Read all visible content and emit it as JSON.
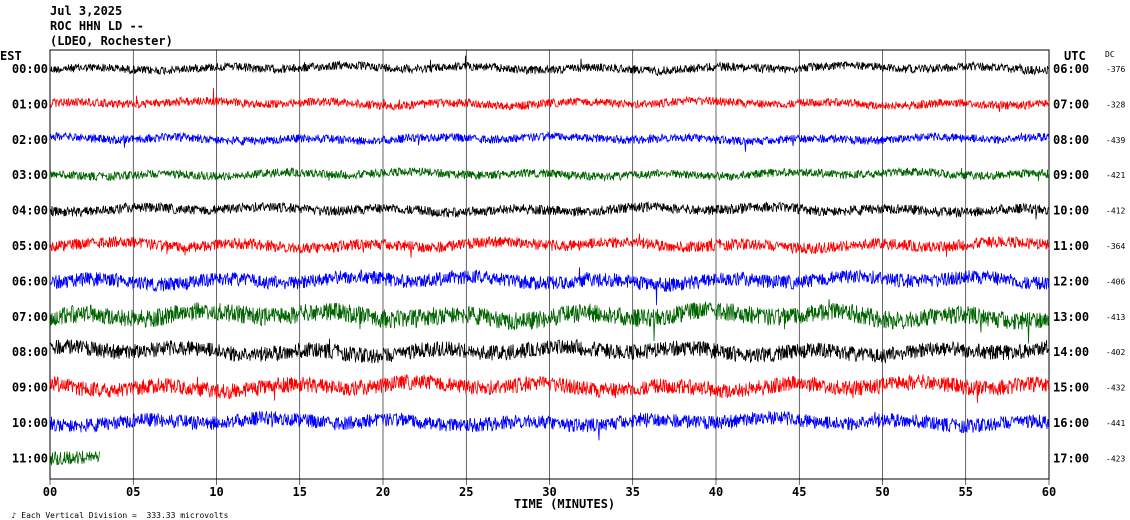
{
  "header": {
    "date": "Jul 3,2025",
    "station": "ROC HHN LD --",
    "network": "(LDEO, Rochester)"
  },
  "left_zone": "EST",
  "right_zone": "UTC",
  "dc_label": "DC",
  "footer": {
    "scale": "Each Vertical Division =  333.33 microvolts",
    "xlabel": "TIME (MINUTES)"
  },
  "colors": {
    "black": "#000000",
    "red": "#ff0000",
    "blue": "#0000ff",
    "green": "#006400"
  },
  "chart_data": {
    "type": "line",
    "title": "Jul 3,2025 ROC HHN LD -- (LDEO, Rochester)",
    "xlabel": "TIME (MINUTES)",
    "xlim": [
      0,
      60
    ],
    "x_ticks": [
      "00",
      "05",
      "10",
      "15",
      "20",
      "25",
      "30",
      "35",
      "40",
      "45",
      "50",
      "55",
      "60"
    ],
    "grid": "vertical lines every 5 minutes",
    "series": [
      {
        "est": "00:00",
        "utc": "06:00",
        "dc": "-376",
        "color": "#000000",
        "amplitude": 0.6,
        "end_minute": 60
      },
      {
        "est": "01:00",
        "utc": "07:00",
        "dc": "-328",
        "color": "#ff0000",
        "amplitude": 0.6,
        "end_minute": 60
      },
      {
        "est": "02:00",
        "utc": "08:00",
        "dc": "-439",
        "color": "#0000ff",
        "amplitude": 0.6,
        "end_minute": 60
      },
      {
        "est": "03:00",
        "utc": "09:00",
        "dc": "-421",
        "color": "#006400",
        "amplitude": 0.6,
        "end_minute": 60
      },
      {
        "est": "04:00",
        "utc": "10:00",
        "dc": "-412",
        "color": "#000000",
        "amplitude": 0.7,
        "end_minute": 60
      },
      {
        "est": "05:00",
        "utc": "11:00",
        "dc": "-364",
        "color": "#ff0000",
        "amplitude": 0.8,
        "end_minute": 60
      },
      {
        "est": "06:00",
        "utc": "12:00",
        "dc": "-406",
        "color": "#0000ff",
        "amplitude": 1.0,
        "end_minute": 60
      },
      {
        "est": "07:00",
        "utc": "13:00",
        "dc": "-413",
        "color": "#006400",
        "amplitude": 1.3,
        "end_minute": 60
      },
      {
        "est": "08:00",
        "utc": "14:00",
        "dc": "-402",
        "color": "#000000",
        "amplitude": 1.1,
        "end_minute": 60
      },
      {
        "est": "09:00",
        "utc": "15:00",
        "dc": "-432",
        "color": "#ff0000",
        "amplitude": 1.1,
        "end_minute": 60
      },
      {
        "est": "10:00",
        "utc": "16:00",
        "dc": "-441",
        "color": "#0000ff",
        "amplitude": 1.0,
        "end_minute": 60
      },
      {
        "est": "11:00",
        "utc": "17:00",
        "dc": "-423",
        "color": "#006400",
        "amplitude": 1.0,
        "end_minute": 3
      }
    ]
  }
}
